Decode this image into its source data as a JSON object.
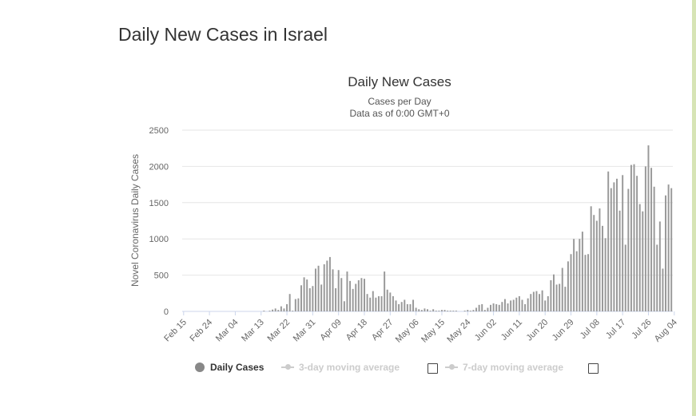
{
  "page": {
    "heading": "Daily New Cases in Israel"
  },
  "chart_data": {
    "type": "bar",
    "title": "Daily New Cases",
    "subtitles": [
      "Cases per Day",
      "Data as of 0:00 GMT+0"
    ],
    "ylabel": "Novel Coronavirus Daily Cases",
    "xlabel": "",
    "ylim": [
      0,
      2500
    ],
    "yticks": [
      0,
      500,
      1000,
      1500,
      2000,
      2500
    ],
    "grid": true,
    "legend_position": "bottom",
    "colors": {
      "bar": "#999999",
      "grid": "#e6e6e6",
      "axis": "#ccd6eb"
    },
    "xtick_labels": [
      "Feb 15",
      "Feb 24",
      "Mar 04",
      "Mar 13",
      "Mar 22",
      "Mar 31",
      "Apr 09",
      "Apr 18",
      "Apr 27",
      "May 06",
      "May 15",
      "May 24",
      "Jun 02",
      "Jun 11",
      "Jun 20",
      "Jun 29",
      "Jul 08",
      "Jul 17",
      "Jul 26",
      "Aug 04"
    ],
    "x_start": "Feb 15",
    "x_end": "Aug 06",
    "series": [
      {
        "name": "Daily Cases",
        "values": [
          0,
          0,
          0,
          0,
          0,
          0,
          0,
          0,
          0,
          0,
          0,
          0,
          0,
          0,
          0,
          0,
          0,
          0,
          0,
          0,
          0,
          0,
          0,
          0,
          0,
          0,
          0,
          0,
          10,
          0,
          10,
          25,
          40,
          20,
          70,
          40,
          100,
          240,
          10,
          170,
          180,
          360,
          470,
          440,
          320,
          350,
          590,
          630,
          370,
          650,
          700,
          750,
          580,
          320,
          570,
          460,
          140,
          550,
          420,
          310,
          380,
          430,
          460,
          450,
          240,
          190,
          280,
          190,
          210,
          210,
          550,
          300,
          260,
          210,
          150,
          100,
          130,
          160,
          100,
          100,
          160,
          50,
          30,
          20,
          40,
          30,
          10,
          30,
          10,
          10,
          20,
          20,
          10,
          10,
          10,
          10,
          0,
          0,
          10,
          20,
          10,
          20,
          50,
          90,
          100,
          20,
          50,
          90,
          110,
          100,
          90,
          130,
          170,
          110,
          150,
          160,
          190,
          210,
          160,
          100,
          180,
          240,
          270,
          280,
          240,
          290,
          150,
          210,
          430,
          510,
          370,
          380,
          600,
          340,
          690,
          790,
          1000,
          830,
          1000,
          1100,
          780,
          790,
          1450,
          1330,
          1250,
          1420,
          1180,
          1010,
          1930,
          1700,
          1780,
          1830,
          1390,
          1880,
          920,
          1690,
          2020,
          2030,
          1870,
          1480,
          1380,
          2000,
          2290,
          1980,
          1720,
          920,
          1240,
          590,
          1600,
          1750,
          1700
        ]
      },
      {
        "name": "3-day moving average"
      },
      {
        "name": "7-day moving average"
      }
    ]
  }
}
